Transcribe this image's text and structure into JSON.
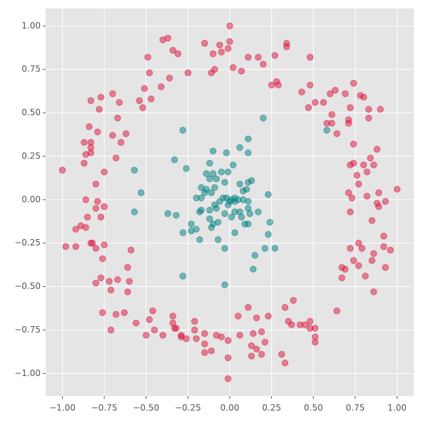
{
  "chart_data": {
    "type": "scatter",
    "xlim": [
      -1.1,
      1.1
    ],
    "ylim": [
      -1.13,
      1.1
    ],
    "grid": true,
    "xticks": [
      {
        "value": -1,
        "label": "−1.00"
      },
      {
        "value": -0.75,
        "label": "−0.75"
      },
      {
        "value": -0.5,
        "label": "−0.50"
      },
      {
        "value": -0.25,
        "label": "−0.25"
      },
      {
        "value": 0,
        "label": "0.00"
      },
      {
        "value": 0.25,
        "label": "0.25"
      },
      {
        "value": 0.5,
        "label": "0.50"
      },
      {
        "value": 0.75,
        "label": "0.75"
      },
      {
        "value": 1,
        "label": "1.00"
      }
    ],
    "yticks": [
      {
        "value": -1,
        "label": "−1.00"
      },
      {
        "value": -0.75,
        "label": "−0.75"
      },
      {
        "value": -0.5,
        "label": "−0.50"
      },
      {
        "value": -0.25,
        "label": "−0.25"
      },
      {
        "value": 0,
        "label": "0.00"
      },
      {
        "value": 0.25,
        "label": "0.25"
      },
      {
        "value": 0.5,
        "label": "0.50"
      },
      {
        "value": 0.75,
        "label": "0.75"
      },
      {
        "value": 1,
        "label": "1.00"
      }
    ],
    "series": [
      {
        "color": "#dc143c",
        "x": [
          0,
          0,
          -0.15,
          -0.37,
          -0.4,
          -0.34,
          -0.31,
          -0.49,
          -0.48,
          -0.25,
          -0.1,
          -0.05,
          -0.06,
          -0.01,
          -0.09,
          -0.11,
          0.02,
          0.11,
          0.17,
          0.2,
          0.07,
          0.27,
          0.34,
          0.34,
          0.48,
          0.28,
          0.25,
          0.29,
          0.43,
          0.48,
          0.47,
          0.51,
          0.56,
          0.6,
          0.63,
          0.69,
          0.61,
          0.58,
          0.61,
          0.64,
          0.72,
          0.74,
          0.78,
          0.8,
          0.83,
          0.9,
          0.83,
          0.71,
          0.71,
          0.74,
          0.88,
          0.84,
          0.74,
          0.72,
          0.8,
          0.86,
          0.82,
          0.76,
          0.77,
          0.71,
          0.73,
          0.82,
          0.89,
          1,
          0.88,
          0.93,
          0.89,
          0.72,
          0.85,
          0.92,
          0.77,
          0.79,
          0.72,
          0.86,
          0.92,
          0.96,
          0.74,
          0.77,
          0.85,
          0.93,
          0.67,
          0.69,
          0.67,
          0.81,
          0.86,
          0.64,
          0.38,
          0.33,
          0.48,
          0.35,
          0.37,
          0.42,
          0.45,
          0.51,
          0.48,
          0.23,
          0.16,
          0.11,
          0.05,
          0.14,
          0.19,
          0.13,
          0.21,
          0.16,
          0.19,
          0.13,
          0.31,
          0.33,
          0.51,
          0.51,
          0.06,
          -0.08,
          -0.05,
          -0.01,
          -0.15,
          -0.01,
          -0.01,
          -0.15,
          -0.15,
          -0.11,
          -0.21,
          -0.26,
          -0.29,
          -0.29,
          -0.2,
          -0.21,
          -0.34,
          -0.34,
          -0.33,
          -0.32,
          -0.4,
          -0.5,
          -0.45,
          -0.46,
          -0.48,
          -0.56,
          -0.63,
          -0.68,
          -0.76,
          -0.71,
          -0.71,
          -0.72,
          -0.8,
          -0.67,
          -0.77,
          -0.6,
          -0.61,
          -0.61,
          -0.59,
          -0.76,
          -0.75,
          -0.8,
          -0.82,
          -0.83,
          -0.92,
          -0.98,
          -0.92,
          -0.89,
          -0.86,
          -0.85,
          -0.77,
          -0.8,
          -0.75,
          -0.86,
          -0.79,
          -0.8,
          -1,
          -0.75,
          -0.87,
          -0.86,
          -0.83,
          -0.83,
          -0.83,
          -0.87,
          -0.84,
          -0.79,
          -0.68,
          -0.65,
          -0.62,
          -0.7,
          -0.67,
          -0.78,
          -0.66,
          -0.7,
          -0.77,
          -0.83,
          -0.54,
          -0.52,
          -0.51,
          -0.47,
          -0.41,
          -0.36
        ],
        "values": [
          1,
          0.91,
          0.9,
          0.93,
          0.92,
          0.86,
          0.84,
          0.82,
          0.73,
          0.73,
          0.84,
          0.85,
          0.89,
          0.87,
          0.75,
          0.73,
          0.76,
          0.82,
          0.82,
          0.78,
          0.74,
          0.83,
          0.9,
          0.88,
          0.82,
          0.68,
          0.66,
          0.66,
          0.62,
          0.66,
          0.53,
          0.56,
          0.56,
          0.61,
          0.63,
          0.61,
          0.49,
          0.44,
          0.44,
          0.38,
          0.53,
          0.67,
          0.6,
          0.59,
          0.52,
          0.52,
          0.47,
          0.46,
          0.44,
          0.32,
          0.29,
          0.24,
          0.21,
          0.2,
          0.2,
          0.2,
          0.16,
          0.14,
          0.09,
          0.04,
          0.01,
          0.02,
          0.04,
          0.06,
          -0.02,
          -0.01,
          -0.04,
          -0.07,
          -0.12,
          -0.21,
          -0.25,
          -0.28,
          -0.28,
          -0.31,
          -0.27,
          -0.29,
          -0.35,
          -0.38,
          -0.35,
          -0.39,
          -0.39,
          -0.4,
          -0.45,
          -0.44,
          -0.53,
          -0.64,
          -0.58,
          -0.62,
          -0.7,
          -0.7,
          -0.72,
          -0.72,
          -0.72,
          -0.74,
          -0.74,
          -0.67,
          -0.68,
          -0.62,
          -0.67,
          -0.77,
          -0.76,
          -0.84,
          -0.82,
          -0.86,
          -0.89,
          -0.9,
          -0.89,
          -0.94,
          -0.79,
          -0.82,
          -0.78,
          -0.78,
          -0.79,
          -0.81,
          -0.77,
          -0.91,
          -1.03,
          -0.83,
          -0.88,
          -0.87,
          -0.7,
          -0.8,
          -0.78,
          -0.79,
          -0.8,
          -0.75,
          -0.67,
          -0.71,
          -0.74,
          -0.74,
          -0.78,
          -0.78,
          -0.75,
          -0.64,
          -0.69,
          -0.71,
          -0.65,
          -0.66,
          -0.65,
          -0.75,
          -0.52,
          -0.47,
          -0.48,
          -0.46,
          -0.45,
          -0.47,
          -0.53,
          -0.39,
          -0.29,
          -0.34,
          -0.26,
          -0.28,
          -0.25,
          -0.25,
          -0.27,
          -0.27,
          -0.17,
          -0.15,
          -0.16,
          -0.1,
          -0.1,
          -0.05,
          -0.04,
          0,
          -0.01,
          0.09,
          0.17,
          0.16,
          0.21,
          0.26,
          0.27,
          0.3,
          0.33,
          0.33,
          0.42,
          0.39,
          0.24,
          0.33,
          0.38,
          0.37,
          0.47,
          0.52,
          0.56,
          0.61,
          0.59,
          0.57,
          0.57,
          0.53,
          0.64,
          0.58,
          0.65,
          0.7
        ]
      },
      {
        "color": "#008080",
        "x": [
          -0.28,
          0.2,
          0.58,
          0.11,
          0.06,
          -0.02,
          -0.1,
          0.11,
          -0.33,
          -0.26,
          -0.57,
          -0.12,
          0.02,
          -0.53,
          -0.57,
          -0.14,
          -0.1,
          -0.05,
          -0.01,
          -0.12,
          -0.08,
          0.13,
          0.11,
          0.06,
          -0.03,
          -0.14,
          -0.09,
          -0.11,
          -0.15,
          0.1,
          0.08,
          0.23,
          -0.04,
          -0.02,
          0.01,
          0,
          0.03,
          0.03,
          0.05,
          -0.01,
          0.08,
          -0.06,
          0.11,
          -0.17,
          -0.2,
          -0.09,
          -0.12,
          -0.08,
          -0.17,
          -0.18,
          -0.03,
          0.03,
          0.06,
          0.11,
          0.17,
          0.12,
          -0.37,
          -0.32,
          -0.12,
          -0.07,
          0.01,
          0.07,
          -0.23,
          -0.23,
          0.09,
          0.11,
          0.24,
          -0.11,
          -0.1,
          -0.2,
          -0.28,
          0.03,
          0.23,
          -0.18,
          -0.07,
          -0.03,
          0.21,
          0.27,
          0.15,
          0.14,
          -0.28,
          -0.03,
          -0.17
        ],
        "values": [
          0.4,
          0.47,
          0.4,
          0.35,
          0.3,
          0.27,
          0.28,
          0.27,
          0.23,
          0.18,
          0.17,
          0.21,
          0.2,
          0.04,
          -0.07,
          0.15,
          0.15,
          0.16,
          0.16,
          0.12,
          0.12,
          0.11,
          0.1,
          0.09,
          0.1,
          0.06,
          0.07,
          0.04,
          0.04,
          0.06,
          0.05,
          0.03,
          0.01,
          0.01,
          0,
          -0.01,
          -0.01,
          0.01,
          0,
          -0.03,
          0,
          -0.01,
          -0.01,
          0.01,
          0.01,
          -0.03,
          -0.06,
          -0.05,
          -0.06,
          -0.07,
          -0.08,
          -0.07,
          -0.07,
          -0.05,
          -0.07,
          -0.08,
          -0.08,
          -0.09,
          -0.11,
          -0.13,
          -0.1,
          -0.1,
          -0.14,
          -0.18,
          -0.14,
          -0.14,
          -0.13,
          -0.16,
          -0.14,
          -0.17,
          -0.19,
          -0.19,
          -0.2,
          -0.23,
          -0.23,
          -0.28,
          -0.28,
          -0.28,
          -0.32,
          -0.4,
          -0.44,
          -0.49,
          0.07
        ]
      }
    ]
  }
}
